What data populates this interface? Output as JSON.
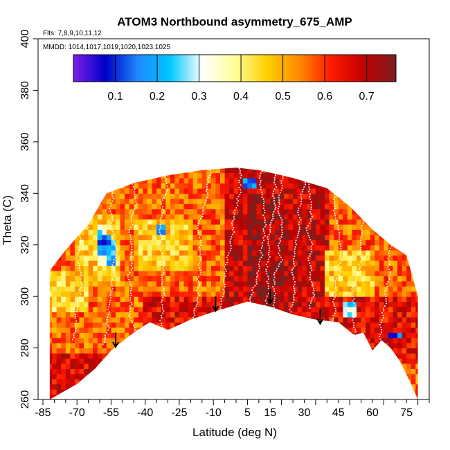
{
  "chart_data": {
    "type": "heatmap",
    "title": "ATOM3 Northbound asymmetry_675_AMP",
    "flights_label": "Flts: 7,8,9,10,11,12",
    "dates_label": "MMDD: 1014,1017,1019,1020,1023,1025",
    "xlabel": "Latitude (deg N)",
    "ylabel": "Theta (C)",
    "xlim": [
      -85,
      85
    ],
    "ylim": [
      260,
      400
    ],
    "x_ticks": [
      -85,
      -70,
      -55,
      -40,
      -25,
      -10,
      5,
      15,
      30,
      45,
      60,
      75
    ],
    "y_ticks": [
      260,
      280,
      300,
      320,
      340,
      360,
      380,
      400
    ],
    "colorbar": {
      "range": [
        0,
        0.77
      ],
      "ticks": [
        0.1,
        0.2,
        0.3,
        0.4,
        0.5,
        0.6,
        0.7
      ],
      "tick_labels": [
        "0.1",
        "0.2",
        "0.3",
        "0.4",
        "0.5",
        "0.6",
        "0.7"
      ],
      "colors": [
        "#7b1fe8",
        "#0000c8",
        "#1e88ff",
        "#00c8ff",
        "#ffffff",
        "#ffff99",
        "#ffd000",
        "#ff8a00",
        "#ff1a00",
        "#c00000",
        "#7a2020"
      ]
    },
    "upper_boundary": [
      [
        -82,
        310
      ],
      [
        -75,
        318
      ],
      [
        -65,
        328
      ],
      [
        -57,
        340
      ],
      [
        -45,
        344
      ],
      [
        -30,
        347
      ],
      [
        -15,
        349
      ],
      [
        0,
        350
      ],
      [
        10,
        349
      ],
      [
        25,
        346
      ],
      [
        40,
        342
      ],
      [
        50,
        335
      ],
      [
        60,
        326
      ],
      [
        68,
        320
      ],
      [
        75,
        316
      ],
      [
        80,
        300
      ]
    ],
    "lower_boundary": [
      [
        -82,
        260
      ],
      [
        -70,
        266
      ],
      [
        -62,
        272
      ],
      [
        -55,
        279
      ],
      [
        -45,
        286
      ],
      [
        -38,
        290
      ],
      [
        -30,
        287
      ],
      [
        -20,
        291
      ],
      [
        -10,
        294
      ],
      [
        5,
        298
      ],
      [
        15,
        296
      ],
      [
        25,
        293
      ],
      [
        35,
        291
      ],
      [
        45,
        290
      ],
      [
        52,
        285
      ],
      [
        56,
        286
      ],
      [
        60,
        279
      ],
      [
        64,
        283
      ],
      [
        68,
        280
      ],
      [
        72,
        275
      ],
      [
        77,
        266
      ],
      [
        80,
        260
      ]
    ],
    "arrows": [
      [
        -53,
        286
      ],
      [
        -9,
        300
      ],
      [
        15,
        303
      ],
      [
        37,
        295
      ]
    ],
    "value_regions": [
      {
        "lat": [
          -82,
          80
        ],
        "theta": [
          258,
          352
        ],
        "value": 0.56
      },
      {
        "lat": [
          -40,
          80
        ],
        "theta": [
          275,
          300
        ],
        "value": 0.65
      },
      {
        "lat": [
          -5,
          40
        ],
        "theta": [
          290,
          350
        ],
        "value": 0.68
      },
      {
        "lat": [
          5,
          20
        ],
        "theta": [
          292,
          340
        ],
        "value": 0.72
      },
      {
        "lat": [
          -82,
          60
        ],
        "theta": [
          260,
          278
        ],
        "value": 0.66
      },
      {
        "lat": [
          -70,
          -52
        ],
        "theta": [
          305,
          332
        ],
        "value": 0.47
      },
      {
        "lat": [
          -45,
          -20
        ],
        "theta": [
          310,
          330
        ],
        "value": 0.47
      },
      {
        "lat": [
          -82,
          -65
        ],
        "theta": [
          295,
          310
        ],
        "value": 0.46
      },
      {
        "lat": [
          40,
          60
        ],
        "theta": [
          300,
          318
        ],
        "value": 0.47
      },
      {
        "lat": [
          -60,
          -57
        ],
        "theta": [
          313,
          328
        ],
        "value": 0.3
      },
      {
        "lat": [
          -57,
          -54
        ],
        "theta": [
          312,
          322
        ],
        "value": 0.22
      },
      {
        "lat": [
          -60,
          -55
        ],
        "theta": [
          317,
          323
        ],
        "value": 0.15
      },
      {
        "lat": [
          48,
          53
        ],
        "theta": [
          292,
          298
        ],
        "value": 0.28
      },
      {
        "lat": [
          68,
          73
        ],
        "theta": [
          284,
          286
        ],
        "value": 0.12
      },
      {
        "lat": [
          4,
          8
        ],
        "theta": [
          342,
          345
        ],
        "value": 0.18
      },
      {
        "lat": [
          -35,
          -32
        ],
        "theta": [
          324,
          327
        ],
        "value": 0.2
      }
    ]
  }
}
